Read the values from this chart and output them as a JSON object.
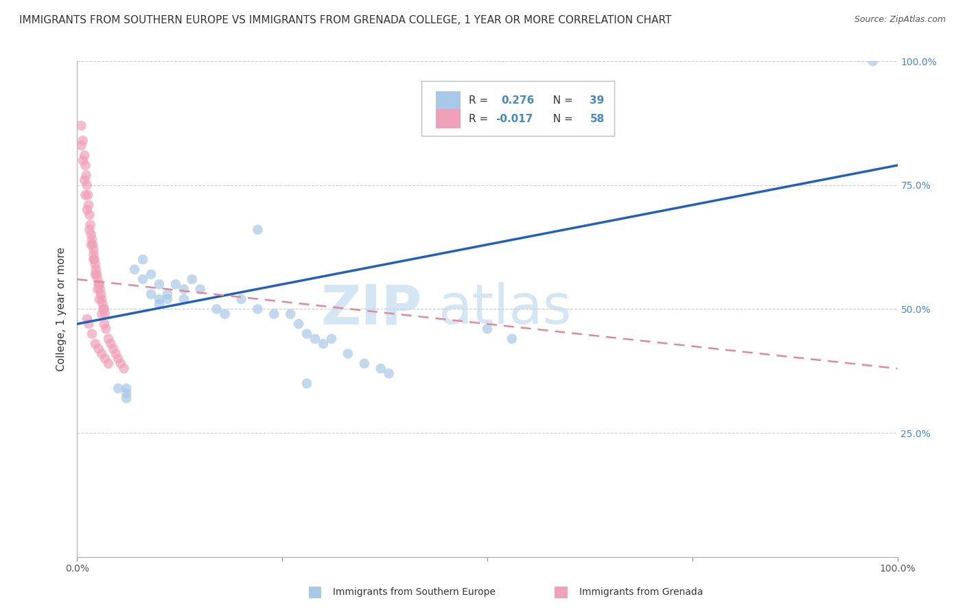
{
  "title": "IMMIGRANTS FROM SOUTHERN EUROPE VS IMMIGRANTS FROM GRENADA COLLEGE, 1 YEAR OR MORE CORRELATION CHART",
  "source": "Source: ZipAtlas.com",
  "ylabel": "College, 1 year or more",
  "xlim": [
    0,
    1.0
  ],
  "ylim": [
    0,
    1.0
  ],
  "xticklabels": [
    "0.0%",
    "",
    "",
    "",
    "100.0%"
  ],
  "xtick_positions": [
    0.0,
    0.25,
    0.5,
    0.75,
    1.0
  ],
  "ytick_labels_right": [
    "100.0%",
    "75.0%",
    "50.0%",
    "25.0%",
    ""
  ],
  "ytick_positions_right": [
    1.0,
    0.75,
    0.5,
    0.25,
    0.0
  ],
  "blue_color": "#a8c8e8",
  "pink_color": "#f0a0b8",
  "blue_line_color": "#2060c0",
  "pink_line_color": "#e08898",
  "watermark_zip": "ZIP",
  "watermark_atlas": "atlas",
  "blue_scatter_x": [
    0.22,
    0.07,
    0.14,
    0.15,
    0.09,
    0.1,
    0.11,
    0.12,
    0.13,
    0.08,
    0.1,
    0.11,
    0.1,
    0.09,
    0.08,
    0.13,
    0.17,
    0.18,
    0.2,
    0.22,
    0.24,
    0.26,
    0.27,
    0.28,
    0.29,
    0.3,
    0.31,
    0.33,
    0.35,
    0.37,
    0.38,
    0.28,
    0.5,
    0.53,
    0.97,
    0.05,
    0.06,
    0.06,
    0.06
  ],
  "blue_scatter_y": [
    0.66,
    0.58,
    0.56,
    0.54,
    0.57,
    0.52,
    0.53,
    0.55,
    0.54,
    0.6,
    0.55,
    0.52,
    0.51,
    0.53,
    0.56,
    0.52,
    0.5,
    0.49,
    0.52,
    0.5,
    0.49,
    0.49,
    0.47,
    0.45,
    0.44,
    0.43,
    0.44,
    0.41,
    0.39,
    0.38,
    0.37,
    0.35,
    0.46,
    0.44,
    1.0,
    0.34,
    0.34,
    0.33,
    0.32
  ],
  "pink_scatter_x": [
    0.005,
    0.007,
    0.009,
    0.01,
    0.011,
    0.012,
    0.013,
    0.014,
    0.015,
    0.016,
    0.017,
    0.018,
    0.019,
    0.02,
    0.02,
    0.021,
    0.022,
    0.023,
    0.024,
    0.025,
    0.026,
    0.027,
    0.028,
    0.029,
    0.03,
    0.031,
    0.032,
    0.033,
    0.034,
    0.005,
    0.007,
    0.009,
    0.01,
    0.012,
    0.015,
    0.017,
    0.02,
    0.022,
    0.025,
    0.027,
    0.03,
    0.033,
    0.035,
    0.038,
    0.041,
    0.044,
    0.047,
    0.05,
    0.053,
    0.057,
    0.012,
    0.014,
    0.018,
    0.022,
    0.026,
    0.03,
    0.034,
    0.038
  ],
  "pink_scatter_y": [
    0.87,
    0.84,
    0.81,
    0.79,
    0.77,
    0.75,
    0.73,
    0.71,
    0.69,
    0.67,
    0.65,
    0.64,
    0.63,
    0.62,
    0.61,
    0.6,
    0.59,
    0.58,
    0.57,
    0.56,
    0.55,
    0.55,
    0.54,
    0.53,
    0.52,
    0.51,
    0.5,
    0.5,
    0.49,
    0.83,
    0.8,
    0.76,
    0.73,
    0.7,
    0.66,
    0.63,
    0.6,
    0.57,
    0.54,
    0.52,
    0.49,
    0.47,
    0.46,
    0.44,
    0.43,
    0.42,
    0.41,
    0.4,
    0.39,
    0.38,
    0.48,
    0.47,
    0.45,
    0.43,
    0.42,
    0.41,
    0.4,
    0.39
  ],
  "blue_line_y_start": 0.47,
  "blue_line_y_end": 0.79,
  "pink_line_y_start": 0.56,
  "pink_line_y_end": 0.38,
  "background_color": "#ffffff",
  "grid_color": "#cccccc",
  "title_fontsize": 11,
  "axis_label_fontsize": 11,
  "tick_fontsize": 10,
  "right_tick_color": "#4488cc",
  "legend_text_color": "#333333",
  "legend_value_color": "#4488cc"
}
